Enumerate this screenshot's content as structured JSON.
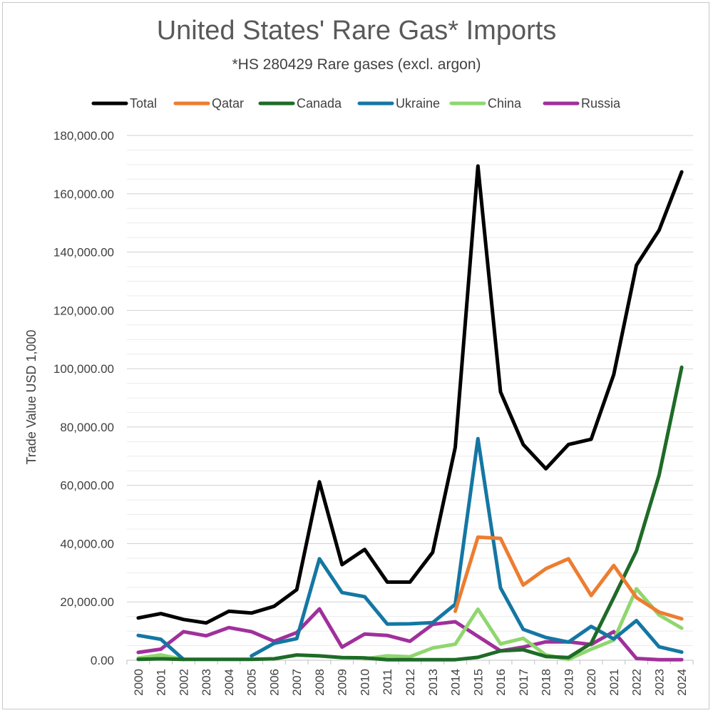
{
  "chart_data": {
    "type": "line",
    "title": "United States' Rare Gas* Imports",
    "subtitle": "*HS 280429  Rare gases (excl. argon)",
    "ylabel": "Trade Value USD 1,000",
    "xlabel": "",
    "ylim": [
      0,
      180000
    ],
    "yticks": [
      "0.00",
      "20,000.00",
      "40,000.00",
      "60,000.00",
      "80,000.00",
      "100,000.00",
      "120,000.00",
      "140,000.00",
      "160,000.00",
      "180,000.00"
    ],
    "grid": true,
    "legend_position": "top",
    "categories": [
      "2000",
      "2001",
      "2002",
      "2003",
      "2004",
      "2005",
      "2006",
      "2007",
      "2008",
      "2009",
      "2010",
      "2011",
      "2012",
      "2013",
      "2014",
      "2015",
      "2016",
      "2017",
      "2018",
      "2019",
      "2020",
      "2021",
      "2022",
      "2023",
      "2024"
    ],
    "series": [
      {
        "name": "Total",
        "color": "#000000",
        "values": [
          14500,
          16000,
          14000,
          12800,
          16800,
          16200,
          18500,
          24200,
          61200,
          32800,
          38000,
          26800,
          26800,
          37000,
          73000,
          169500,
          92000,
          74000,
          65700,
          74000,
          75800,
          98000,
          135500,
          147500,
          167500
        ]
      },
      {
        "name": "Qatar",
        "color": "#ED7D31",
        "values": [
          null,
          null,
          null,
          null,
          null,
          null,
          null,
          null,
          null,
          null,
          null,
          null,
          null,
          null,
          16800,
          42200,
          41800,
          25800,
          31400,
          34800,
          22200,
          32500,
          21500,
          16500,
          14200
        ]
      },
      {
        "name": "Canada",
        "color": "#1E6B27",
        "values": [
          300,
          500,
          300,
          300,
          300,
          300,
          500,
          1800,
          1500,
          900,
          800,
          200,
          200,
          200,
          200,
          1000,
          3200,
          3600,
          1300,
          900,
          5800,
          21500,
          37500,
          63500,
          100500
        ]
      },
      {
        "name": "Ukraine",
        "color": "#1477A3",
        "values": [
          8500,
          7200,
          300,
          null,
          null,
          1500,
          5800,
          7400,
          34800,
          23200,
          21800,
          12400,
          12500,
          12900,
          19200,
          76000,
          24800,
          10600,
          7800,
          6200,
          11600,
          7300,
          13600,
          4600,
          2800
        ]
      },
      {
        "name": "China",
        "color": "#8FD66F",
        "values": [
          700,
          1800,
          300,
          null,
          null,
          null,
          null,
          null,
          null,
          null,
          500,
          1500,
          1200,
          4200,
          5500,
          17500,
          5600,
          7500,
          1800,
          300,
          3800,
          6900,
          24500,
          15500,
          11000
        ]
      },
      {
        "name": "Russia",
        "color": "#A0309B",
        "values": [
          2700,
          3800,
          9800,
          8400,
          11200,
          9800,
          6500,
          9500,
          17600,
          4500,
          9000,
          8500,
          6500,
          12300,
          13200,
          8200,
          3200,
          4500,
          6300,
          6300,
          5400,
          9800,
          600,
          200,
          200
        ]
      }
    ]
  }
}
